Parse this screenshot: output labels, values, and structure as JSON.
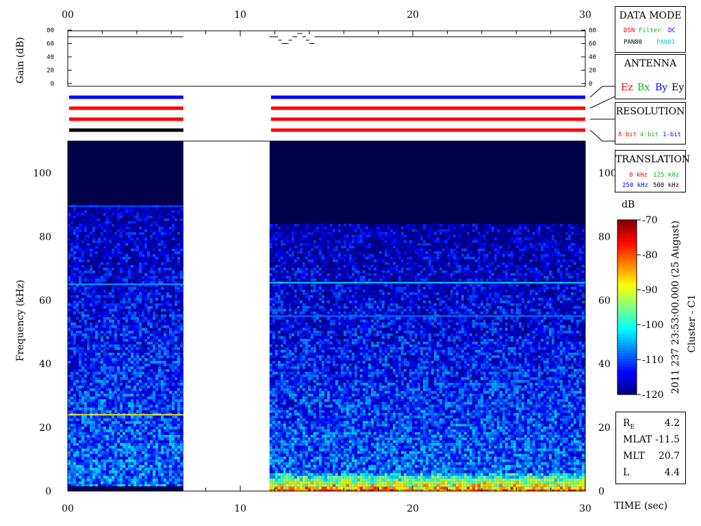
{
  "time_axis": {
    "label": "TIME (sec)",
    "ticks": [
      "00",
      "10",
      "20",
      "30"
    ],
    "range": [
      0,
      30
    ]
  },
  "gain_panel": {
    "ylabel": "Gain (dB)",
    "ticks": [
      "0",
      "20",
      "40",
      "60",
      "80"
    ],
    "range": [
      0,
      80
    ]
  },
  "spectrogram": {
    "ylabel": "Frequency (kHz)",
    "ticks": [
      "0",
      "20",
      "40",
      "60",
      "80",
      "100"
    ],
    "range": [
      0,
      110
    ]
  },
  "colorbar": {
    "unit": "dB",
    "ticks": [
      "-70",
      "-80",
      "-90",
      "-100",
      "-110",
      "-120"
    ],
    "range": [
      -120,
      -70
    ],
    "caption": "2011 237 23:53:00.000 (25 August)",
    "spacecraft": "Cluster - C1"
  },
  "legend": {
    "data_mode": {
      "title": "DATA MODE",
      "row1": [
        {
          "text": "DSN",
          "color": "#ff0000"
        },
        {
          "text": "Filter",
          "color": "#00c000"
        },
        {
          "text": "DC",
          "color": "#0000ff"
        }
      ],
      "row2": [
        {
          "text": "PAN80",
          "color": "#000000"
        },
        {
          "text": "PAN81",
          "color": "#00d0d0"
        }
      ]
    },
    "antenna": {
      "title": "ANTENNA",
      "items": [
        {
          "text": "Ez",
          "color": "#ff0000"
        },
        {
          "text": "Bx",
          "color": "#00c000"
        },
        {
          "text": "By",
          "color": "#0000ff"
        },
        {
          "text": "Ey",
          "color": "#000000"
        }
      ]
    },
    "resolution": {
      "title": "RESOLUTION",
      "items": [
        {
          "text": "8-bit",
          "color": "#ff0000"
        },
        {
          "text": "4-bit",
          "color": "#00c000"
        },
        {
          "text": "1-bit",
          "color": "#0000ff"
        }
      ]
    },
    "translation": {
      "title": "TRANSLATION",
      "row1": [
        {
          "text": "0 kHz",
          "color": "#ff0000"
        },
        {
          "text": "125 kHz",
          "color": "#00c000"
        }
      ],
      "row2": [
        {
          "text": "250 kHz",
          "color": "#0000ff"
        },
        {
          "text": "500 kHz",
          "color": "#000000"
        }
      ]
    }
  },
  "orbit": {
    "rows": [
      {
        "key": "R",
        "sub": "E",
        "value": "4.2"
      },
      {
        "key": "MLAT",
        "sub": "",
        "value": "-11.5"
      },
      {
        "key": "MLT",
        "sub": "",
        "value": "20.7"
      },
      {
        "key": "L",
        "sub": "",
        "value": "4.4"
      }
    ]
  },
  "chart_data": {
    "type": "heatmap",
    "title": "",
    "xlabel": "TIME (sec)",
    "ylabel": "Frequency (kHz)",
    "xlim": [
      0,
      30
    ],
    "ylim": [
      0,
      110
    ],
    "colorbar_unit": "dB",
    "colorbar_range": [
      -120,
      -70
    ],
    "gain": {
      "ylabel": "Gain (dB)",
      "ylim": [
        0,
        80
      ],
      "segments": [
        {
          "t": [
            0,
            6.7
          ],
          "gain": 70
        },
        {
          "t": [
            11.7,
            12.2
          ],
          "gain": 70
        },
        {
          "t": [
            12.2,
            12.4
          ],
          "gain": 65
        },
        {
          "t": [
            12.4,
            12.8
          ],
          "gain": 60
        },
        {
          "t": [
            12.8,
            13.0
          ],
          "gain": 65
        },
        {
          "t": [
            13.0,
            13.3
          ],
          "gain": 70
        },
        {
          "t": [
            13.3,
            13.6
          ],
          "gain": 75
        },
        {
          "t": [
            13.6,
            13.8
          ],
          "gain": 70
        },
        {
          "t": [
            13.8,
            14.0
          ],
          "gain": 65
        },
        {
          "t": [
            14.0,
            14.3
          ],
          "gain": 60
        },
        {
          "t": [
            14.3,
            30
          ],
          "gain": 70
        }
      ]
    },
    "status_bars": [
      {
        "t": [
          0,
          6.7
        ],
        "colors": [
          "#0000ff",
          "#ff0000",
          "#ff0000",
          "#000000"
        ]
      },
      {
        "t": [
          11.7,
          30
        ],
        "colors": [
          "#0000ff",
          "#ff0000",
          "#ff0000",
          "#ff0000"
        ]
      }
    ],
    "data_segments": [
      {
        "t": [
          0,
          6.7
        ],
        "freq_cutoff_khz": 90,
        "noise_floor_khz": 1.5
      },
      {
        "t": [
          11.7,
          30
        ],
        "freq_cutoff_khz": 84,
        "noise_floor_khz": 0
      }
    ],
    "gap": [
      6.7,
      11.7
    ],
    "spectral_lines": [
      {
        "t": [
          0,
          6.7
        ],
        "freq_khz": 89.5,
        "level_db": -110
      },
      {
        "t": [
          0,
          6.7
        ],
        "freq_khz": 65,
        "level_db": -106
      },
      {
        "t": [
          0,
          6.7
        ],
        "freq_khz": 24,
        "level_db": -88
      },
      {
        "t": [
          11.7,
          30
        ],
        "freq_khz": 65.5,
        "level_db": -103
      },
      {
        "t": [
          11.7,
          30
        ],
        "freq_khz": 55,
        "level_db": -108
      }
    ],
    "low_freq_enhancement": {
      "t": [
        11.7,
        30
      ],
      "freq_khz": [
        0,
        5
      ],
      "level_db": [
        -95,
        -80
      ]
    }
  }
}
